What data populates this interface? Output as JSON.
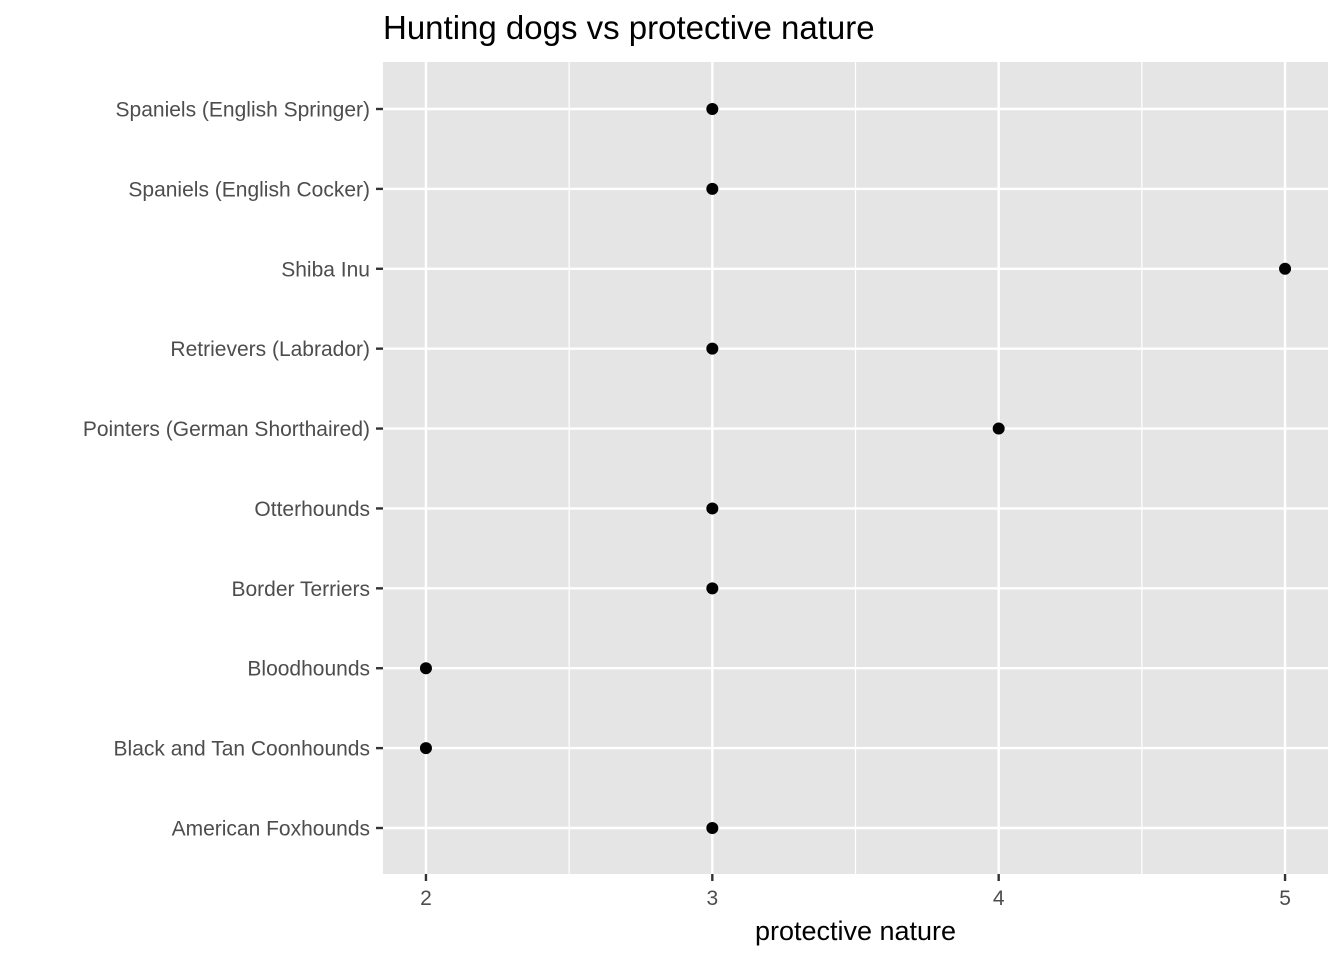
{
  "chart_data": {
    "type": "scatter",
    "title": "Hunting dogs vs protective nature",
    "xlabel": "protective nature",
    "ylabel": "",
    "xlim": [
      1.85,
      5.15
    ],
    "x_ticks": [
      2,
      3,
      4,
      5
    ],
    "x_minor_ticks": [
      2.5,
      3.5,
      4.5
    ],
    "grid": true,
    "legend": "none",
    "colors": {
      "panel": "#e5e5e5",
      "grid": "#ffffff",
      "point": "#000000",
      "tick_text": "#4d4d4d",
      "tick_mark": "#333333"
    },
    "categories": [
      "American Foxhounds",
      "Black and Tan Coonhounds",
      "Bloodhounds",
      "Border Terriers",
      "Otterhounds",
      "Pointers (German Shorthaired)",
      "Retrievers (Labrador)",
      "Shiba Inu",
      "Spaniels (English Cocker)",
      "Spaniels (English Springer)"
    ],
    "values": [
      3,
      2,
      2,
      3,
      3,
      4,
      3,
      5,
      3,
      3
    ]
  }
}
